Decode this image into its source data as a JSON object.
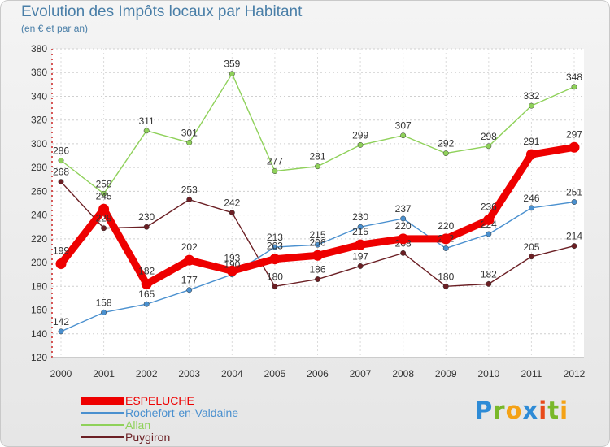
{
  "header": {
    "title": "Evolution des Impôts locaux par Habitant",
    "subtitle": "(en € et par an)"
  },
  "branding": {
    "logo_text": "Proxiti",
    "logo_letters": [
      {
        "ch": "P",
        "color": "#2e8bd6"
      },
      {
        "ch": "r",
        "color": "#79b829"
      },
      {
        "ch": "o",
        "color": "#f4a216"
      },
      {
        "ch": "x",
        "color": "#2e8bd6"
      },
      {
        "ch": "i",
        "color": "#e84a1b"
      },
      {
        "ch": "t",
        "color": "#79b829"
      },
      {
        "ch": "i",
        "color": "#f4a216"
      }
    ]
  },
  "chart_data": {
    "type": "line",
    "title": "Evolution des Impôts locaux par Habitant",
    "subtitle": "(en € et par an)",
    "xlabel": "",
    "ylabel": "",
    "x": [
      "2000",
      "2001",
      "2002",
      "2003",
      "2004",
      "2005",
      "2006",
      "2007",
      "2008",
      "2009",
      "2010",
      "2011",
      "2012"
    ],
    "ylim": [
      120,
      380
    ],
    "yticks": [
      120,
      140,
      160,
      180,
      200,
      220,
      240,
      260,
      280,
      300,
      320,
      340,
      360,
      380
    ],
    "grid": true,
    "legend_position": "bottom-left",
    "series": [
      {
        "name": "Allan",
        "color": "#8fd15a",
        "values": [
          286,
          258,
          311,
          301,
          359,
          277,
          281,
          299,
          307,
          292,
          298,
          332,
          348
        ],
        "style": "thin"
      },
      {
        "name": "Puygiron",
        "color": "#6b1f24",
        "values": [
          268,
          229,
          230,
          253,
          242,
          180,
          186,
          197,
          208,
          180,
          182,
          205,
          214
        ],
        "style": "thin"
      },
      {
        "name": "Rochefort-en-Valdaine",
        "color": "#4a90cf",
        "values": [
          142,
          158,
          165,
          177,
          190,
          213,
          215,
          230,
          237,
          212,
          224,
          246,
          251
        ],
        "style": "thin"
      },
      {
        "name": "ESPELUCHE",
        "color": "#ee0000",
        "values": [
          199,
          245,
          182,
          202,
          193,
          203,
          206,
          215,
          220,
          220,
          236,
          291,
          297
        ],
        "style": "thick"
      }
    ],
    "legend_order": [
      "ESPELUCHE",
      "Rochefort-en-Valdaine",
      "Allan",
      "Puygiron"
    ]
  }
}
